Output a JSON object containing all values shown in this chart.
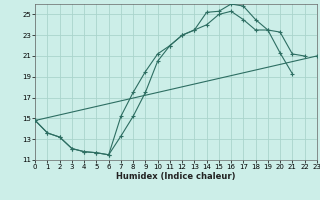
{
  "background_color": "#cceee8",
  "grid_color": "#aad4cc",
  "line_color": "#2d6e62",
  "xlabel": "Humidex (Indice chaleur)",
  "xlim": [
    0,
    23
  ],
  "ylim": [
    11,
    26
  ],
  "xticks": [
    0,
    1,
    2,
    3,
    4,
    5,
    6,
    7,
    8,
    9,
    10,
    11,
    12,
    13,
    14,
    15,
    16,
    17,
    18,
    19,
    20,
    21,
    22,
    23
  ],
  "yticks": [
    11,
    13,
    15,
    17,
    19,
    21,
    23,
    25
  ],
  "line1_x": [
    0,
    1,
    2,
    3,
    4,
    5,
    6,
    7,
    8,
    9,
    10,
    11,
    12,
    13,
    14,
    15,
    16,
    17,
    18,
    19,
    20,
    21
  ],
  "line1_y": [
    14.8,
    13.6,
    13.2,
    12.1,
    11.8,
    11.7,
    11.5,
    13.3,
    15.2,
    17.5,
    20.5,
    22.0,
    23.0,
    23.5,
    25.2,
    25.3,
    26.0,
    25.8,
    24.5,
    23.5,
    21.3,
    19.3
  ],
  "line2_x": [
    0,
    1,
    2,
    3,
    4,
    5,
    6,
    7,
    8,
    9,
    10,
    11,
    12,
    13,
    14,
    15,
    16,
    17,
    18,
    19,
    20,
    21,
    22,
    23
  ],
  "line2_y": [
    14.8,
    13.6,
    13.2,
    12.1,
    11.8,
    11.7,
    11.5,
    15.2,
    17.5,
    19.5,
    21.2,
    22.0,
    23.0,
    23.5,
    24.0,
    25.0,
    25.3,
    24.5,
    23.5,
    23.5,
    23.3,
    21.2,
    21.0,
    null
  ],
  "line3_x": [
    0,
    23
  ],
  "line3_y": [
    14.8,
    21.0
  ]
}
